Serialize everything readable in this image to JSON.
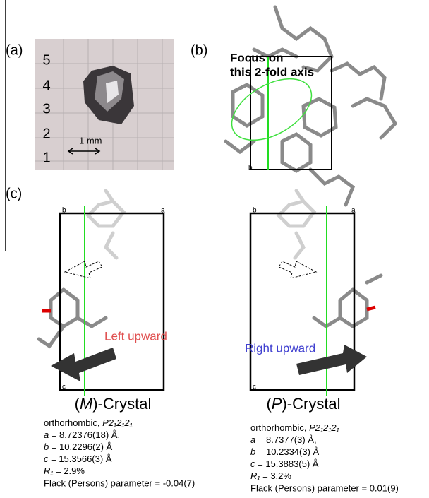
{
  "panels": {
    "a": {
      "label": "(a)",
      "ruler": [
        "5",
        "4",
        "3",
        "2",
        "1"
      ],
      "scale": "1 mm"
    },
    "b": {
      "label": "(b)",
      "annotation": [
        "Focus on",
        "this 2-fold axis"
      ],
      "axis_label": "b"
    },
    "c": {
      "label": "(c)"
    }
  },
  "crystals": [
    {
      "axes": [
        "b",
        "a",
        "c"
      ],
      "direction": "Left upward",
      "name_prefix": "(",
      "name_italic": "M",
      "name_suffix": ")-Crystal",
      "system": "orthorhombic, ",
      "space_group": "P2₁2₁2₁",
      "params": [
        {
          "symbol": "a",
          "text": " = 8.72376(18) Å,"
        },
        {
          "symbol": "b",
          "text": " = 10.2296(2) Å"
        },
        {
          "symbol": "c",
          "text": " = 15.3566(3) Å"
        },
        {
          "symbol": "R₁",
          "text": " = 2.9%"
        }
      ],
      "flack": "Flack (Persons) parameter = -0.04(7)"
    },
    {
      "axes": [
        "b",
        "a",
        "c"
      ],
      "direction": "Right upward",
      "name_prefix": "(",
      "name_italic": "P",
      "name_suffix": ")-Crystal",
      "system": "orthorhombic, ",
      "space_group": "P2₁2₁2₁",
      "params": [
        {
          "symbol": "a",
          "text": " = 8.7377(3) Å,"
        },
        {
          "symbol": "b",
          "text": " = 10.2334(3) Å"
        },
        {
          "symbol": "c",
          "text": " = 15.3883(5) Å"
        },
        {
          "symbol": "R₁",
          "text": " = 3.2%"
        }
      ],
      "flack": "Flack (Persons) parameter = 0.01(9)"
    }
  ]
}
